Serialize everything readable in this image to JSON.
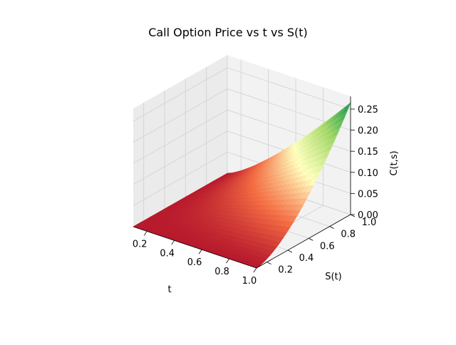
{
  "chart_data": {
    "type": "surface3d",
    "title": "Call Option Price vs t vs S(t)",
    "xlabel": "t",
    "ylabel": "S(t)",
    "zlabel": "C(t,s)",
    "xlim": [
      0.1,
      1.0
    ],
    "ylim": [
      0.1,
      1.0
    ],
    "zlim": [
      0.0,
      0.25
    ],
    "xticks": [
      {
        "value": 0.2,
        "label": "0.2"
      },
      {
        "value": 0.4,
        "label": "0.4"
      },
      {
        "value": 0.6,
        "label": "0.6"
      },
      {
        "value": 0.8,
        "label": "0.8"
      },
      {
        "value": 1.0,
        "label": "1.0"
      }
    ],
    "yticks": [
      {
        "value": 0.2,
        "label": "0.2"
      },
      {
        "value": 0.4,
        "label": "0.4"
      },
      {
        "value": 0.6,
        "label": "0.6"
      },
      {
        "value": 0.8,
        "label": "0.8"
      },
      {
        "value": 1.0,
        "label": "1.0"
      }
    ],
    "zticks": [
      {
        "value": 0.0,
        "label": "0.00"
      },
      {
        "value": 0.05,
        "label": "0.05"
      },
      {
        "value": 0.1,
        "label": "0.10"
      },
      {
        "value": 0.15,
        "label": "0.15"
      },
      {
        "value": 0.2,
        "label": "0.20"
      },
      {
        "value": 0.25,
        "label": "0.25"
      }
    ],
    "grid": true,
    "colormap": "RdYlGn",
    "surface": {
      "t_range": [
        0.1,
        1.0
      ],
      "s_range": [
        0.1,
        1.0
      ],
      "max_price": 0.265,
      "description_points": [
        {
          "t": 0.1,
          "s": 1.0,
          "c": 0.0
        },
        {
          "t": 0.1,
          "s": 0.1,
          "c": 0.0
        },
        {
          "t": 1.0,
          "s": 0.1,
          "c": 0.0
        },
        {
          "t": 1.0,
          "s": 1.0,
          "c": 0.265
        }
      ]
    }
  },
  "colors": {
    "pane": "#f2f2f2",
    "pane_side": "#ebebeb",
    "grid": "#d0d0d0",
    "low": "#a50026",
    "mid": "#ffffbf",
    "high": "#1a9850"
  }
}
